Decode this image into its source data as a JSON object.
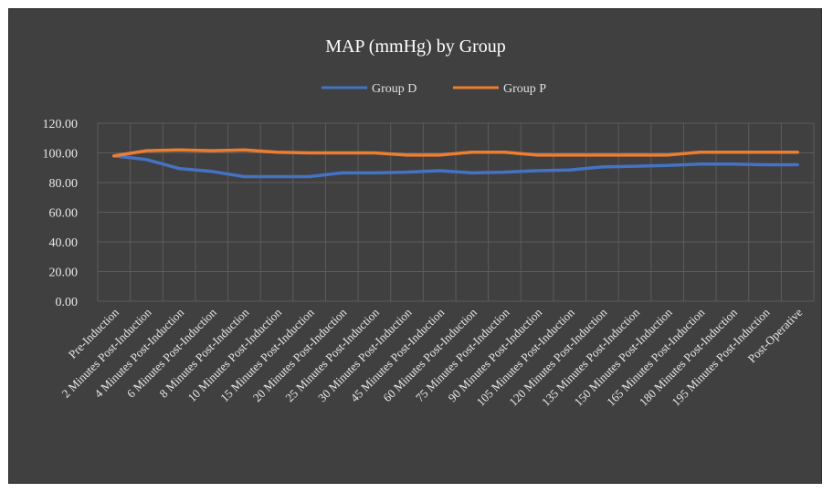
{
  "chart_data": {
    "type": "line",
    "title": "MAP (mmHg) by Group",
    "xlabel": "",
    "ylabel": "",
    "ylim": [
      0,
      120
    ],
    "yticks": [
      "0.00",
      "20.00",
      "40.00",
      "60.00",
      "80.00",
      "100.00",
      "120.00"
    ],
    "grid": "both",
    "legend_position": "top",
    "categories": [
      "Pre-Induction",
      "2 Minutes Post-Induction",
      "4 Minutes Post-Induction",
      "6 Minutes Post-Induction",
      "8 Minutes Post-Induction",
      "10 Minutes Post-Induction",
      "15 Minutes Post-Induction",
      "20 Minutes Post-Induction",
      "25 Minutes Post-Induction",
      "30 Minutes Post-Induction",
      "45 Minutes Post-Induction",
      "60 Minutes Post-Induction",
      "75 Minutes Post-Induction",
      "90 Minutes Post-Induction",
      "105 Minutes Post-Induction",
      "120 Minutes Post-Induction",
      "135 Minutes Post-Induction",
      "150 Minutes Post-Induction",
      "165 Minutes Post-Induction",
      "180 Minutes Post-Induction",
      "195 Minutes Post-Induction",
      "Post-Operative"
    ],
    "series": [
      {
        "name": "Group D",
        "color": "#4472c4",
        "values": [
          98.0,
          95.5,
          89.5,
          87.5,
          84.0,
          84.0,
          84.0,
          86.5,
          86.5,
          87.0,
          88.0,
          86.5,
          87.0,
          88.0,
          88.5,
          90.5,
          91.0,
          91.5,
          92.5,
          92.5,
          92.0,
          92.0
        ]
      },
      {
        "name": "Group P",
        "color": "#ed7d31",
        "values": [
          98.0,
          101.5,
          102.0,
          101.5,
          102.0,
          100.5,
          100.0,
          100.0,
          100.0,
          98.5,
          98.5,
          100.5,
          100.5,
          98.5,
          98.5,
          98.5,
          98.5,
          98.5,
          100.5,
          100.5,
          100.5,
          100.5
        ]
      }
    ]
  }
}
